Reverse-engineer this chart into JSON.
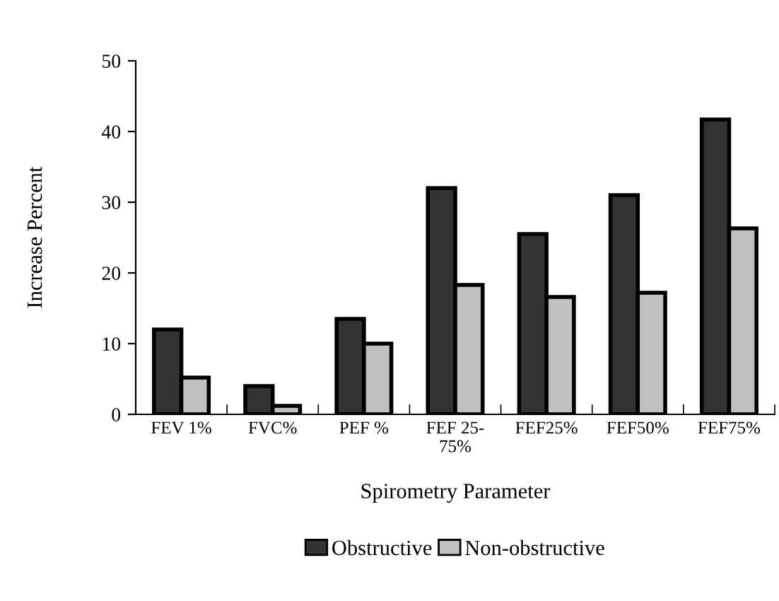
{
  "chart_data": {
    "type": "bar",
    "categories": [
      "FEV 1%",
      "FVC%",
      "PEF %",
      "FEF 25-\n75%",
      "FEF25%",
      "FEF50%",
      "FEF75%"
    ],
    "series": [
      {
        "name": "Obstructive",
        "color": "#333333",
        "values": [
          12,
          4,
          13.5,
          32,
          25.5,
          31,
          41.7
        ]
      },
      {
        "name": "Non-obstructive",
        "color": "#c0c0c0",
        "values": [
          5.2,
          1.2,
          10,
          18.3,
          16.6,
          17.2,
          26.3
        ]
      }
    ],
    "xlabel": "Spirometry Parameter",
    "ylabel": "Increase Percent",
    "ylim": [
      0,
      50
    ],
    "yticks": [
      0,
      10,
      20,
      30,
      40,
      50
    ],
    "grid": false,
    "legend": "bottom"
  }
}
